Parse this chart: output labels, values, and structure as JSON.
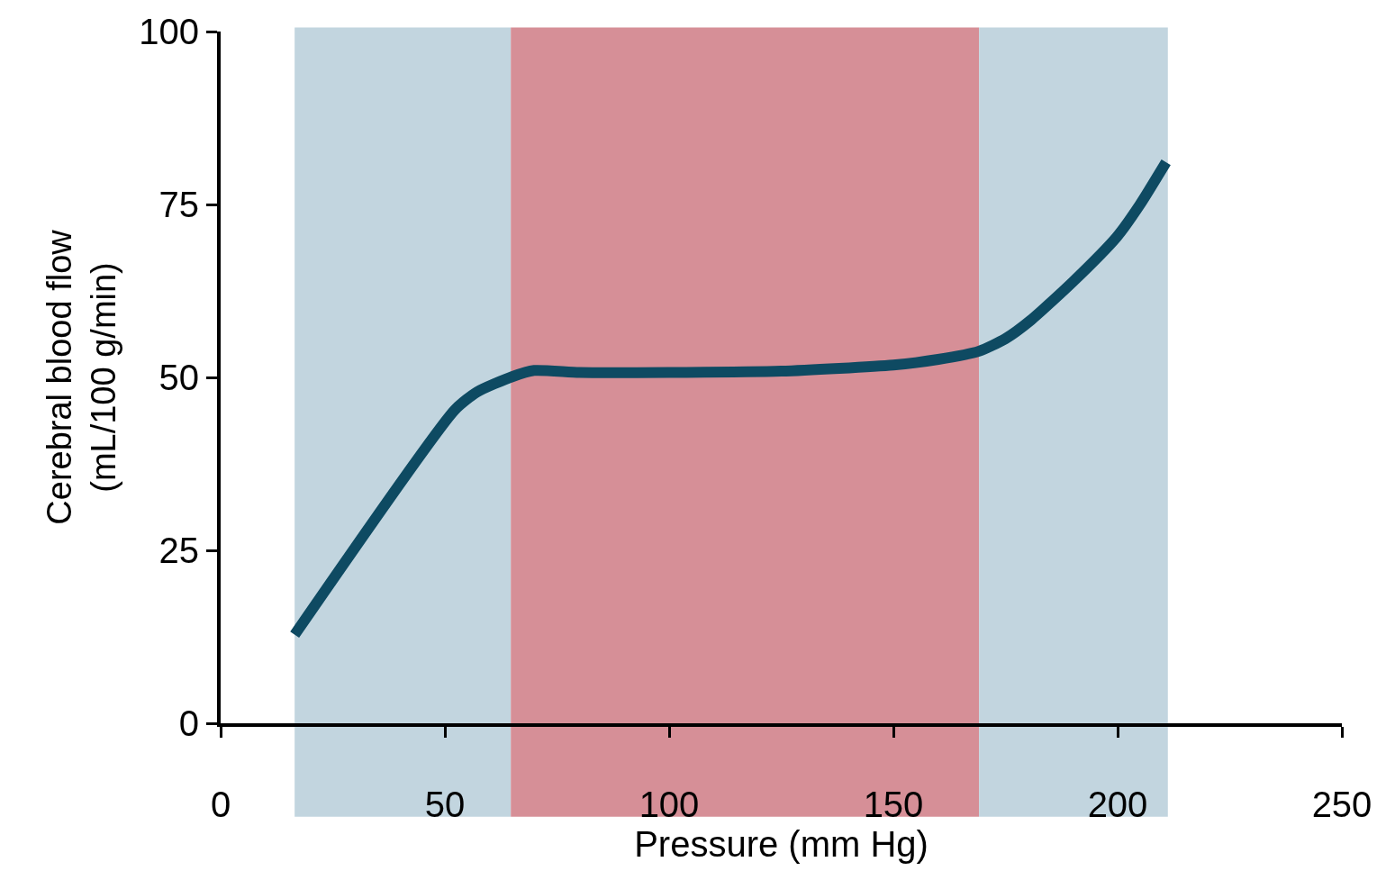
{
  "chart_data": {
    "type": "line",
    "xlabel": "Pressure (mm Hg)",
    "ylabel": "Cerebral blood flow\n(mL/100 g/min)",
    "x": [
      16.5,
      52.2,
      57.2,
      65,
      69.9,
      80,
      100,
      125,
      150,
      160,
      169.1,
      175,
      180.7,
      190,
      199.8,
      205,
      210.8
    ],
    "series": [
      {
        "color": "#0e4a62",
        "values": [
          12.8,
          45.3,
          47.9,
          50.1,
          51.0,
          50.7,
          50.7,
          50.9,
          51.8,
          52.6,
          53.8,
          55.6,
          58.3,
          63.8,
          70.3,
          75,
          81.1
        ]
      }
    ],
    "xlim": [
      0,
      250
    ],
    "xticks": [
      0,
      50,
      100,
      150,
      200,
      250
    ],
    "ylim": [
      0,
      100
    ],
    "yticks": [
      0,
      25,
      50,
      75,
      100
    ],
    "bands": [
      {
        "axis": "x",
        "from": 16.5,
        "to": 64.7,
        "color": "#c2d5df"
      },
      {
        "axis": "x",
        "from": 64.7,
        "to": 169.1,
        "color": "#d68f97"
      },
      {
        "axis": "x",
        "from": 169.1,
        "to": 211.2,
        "color": "#c2d5df"
      }
    ],
    "grid": false,
    "marker": "none",
    "line_style": "solid"
  }
}
